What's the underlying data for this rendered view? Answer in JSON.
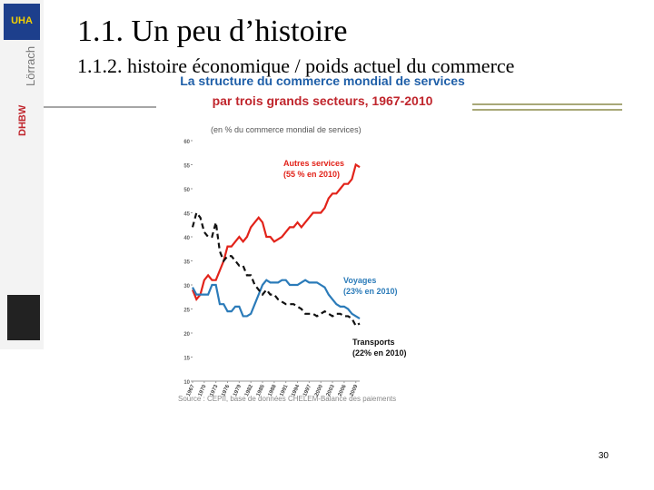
{
  "header": {
    "title": "1.1. Un peu d’histoire",
    "subtitle": "1.1.2. histoire économique / poids actuel du commerce"
  },
  "sidebar": {
    "logos": [
      "UHA",
      "Lörrach",
      "DHBW"
    ]
  },
  "page_number": "30",
  "chart_data": {
    "type": "line",
    "title": [
      "La structure du commerce mondial de services",
      "par trois grands secteurs, 1967-2010"
    ],
    "subtitle": "(en % du commerce mondial de services)",
    "source": "Source : CEPII, base de données CHELEM-Balance des paiements",
    "x": [
      1967,
      1968,
      1969,
      1970,
      1971,
      1972,
      1973,
      1974,
      1975,
      1976,
      1977,
      1978,
      1979,
      1980,
      1981,
      1982,
      1983,
      1984,
      1985,
      1986,
      1987,
      1988,
      1989,
      1990,
      1991,
      1992,
      1993,
      1994,
      1995,
      1996,
      1997,
      1998,
      1999,
      2000,
      2001,
      2002,
      2003,
      2004,
      2005,
      2006,
      2007,
      2008,
      2009,
      2010
    ],
    "xlim": [
      1967,
      2010
    ],
    "xticks": [
      1967,
      1970,
      1973,
      1976,
      1979,
      1982,
      1985,
      1988,
      1991,
      1994,
      1997,
      2000,
      2003,
      2006,
      2009
    ],
    "ylim": [
      10,
      60
    ],
    "yticks": [
      10,
      15,
      20,
      25,
      30,
      35,
      40,
      45,
      50,
      55,
      60
    ],
    "series": [
      {
        "name": "Autres services",
        "color": "#e2231a",
        "style": "solid",
        "values": [
          29,
          27,
          28,
          31,
          32,
          31,
          31,
          33,
          35,
          38,
          38,
          39,
          40,
          39,
          40,
          42,
          43,
          44,
          43,
          40,
          40,
          39,
          39.5,
          40,
          41,
          42,
          42,
          43,
          42,
          43,
          44,
          45,
          45,
          45,
          46,
          48,
          49,
          49,
          50,
          51,
          51,
          52,
          55,
          54.5
        ]
      },
      {
        "name": "Voyages",
        "color": "#2b7bb9",
        "style": "solid",
        "values": [
          29.5,
          28,
          28,
          28,
          28,
          30,
          30,
          26,
          26,
          24.5,
          24.5,
          25.5,
          25.5,
          23.5,
          23.5,
          24,
          26,
          28,
          30,
          31,
          30.5,
          30.5,
          30.5,
          31,
          31,
          30,
          30,
          30,
          30.5,
          31,
          30.5,
          30.5,
          30.5,
          30,
          29.5,
          28,
          27,
          26,
          25.5,
          25.5,
          25,
          24,
          23.5,
          23
        ]
      },
      {
        "name": "Transports",
        "color": "#111111",
        "style": "dashed",
        "values": [
          42,
          45,
          44,
          41,
          40,
          40,
          43,
          37,
          35,
          36,
          36,
          35,
          34,
          34,
          32,
          32,
          30,
          29,
          28,
          29,
          28,
          28,
          27,
          26.5,
          26,
          26,
          26,
          25.5,
          25,
          24,
          24,
          24,
          23.5,
          24,
          24.5,
          24,
          23.5,
          24,
          24,
          23.5,
          23.5,
          23,
          21.5,
          22
        ]
      }
    ],
    "annotations": [
      {
        "series": 0,
        "lines": [
          "Autres services",
          "(55 % en 2010)"
        ]
      },
      {
        "series": 1,
        "lines": [
          "Voyages",
          "(23% en 2010)"
        ]
      },
      {
        "series": 2,
        "lines": [
          "Transports",
          "(22% en 2010)"
        ]
      }
    ]
  }
}
